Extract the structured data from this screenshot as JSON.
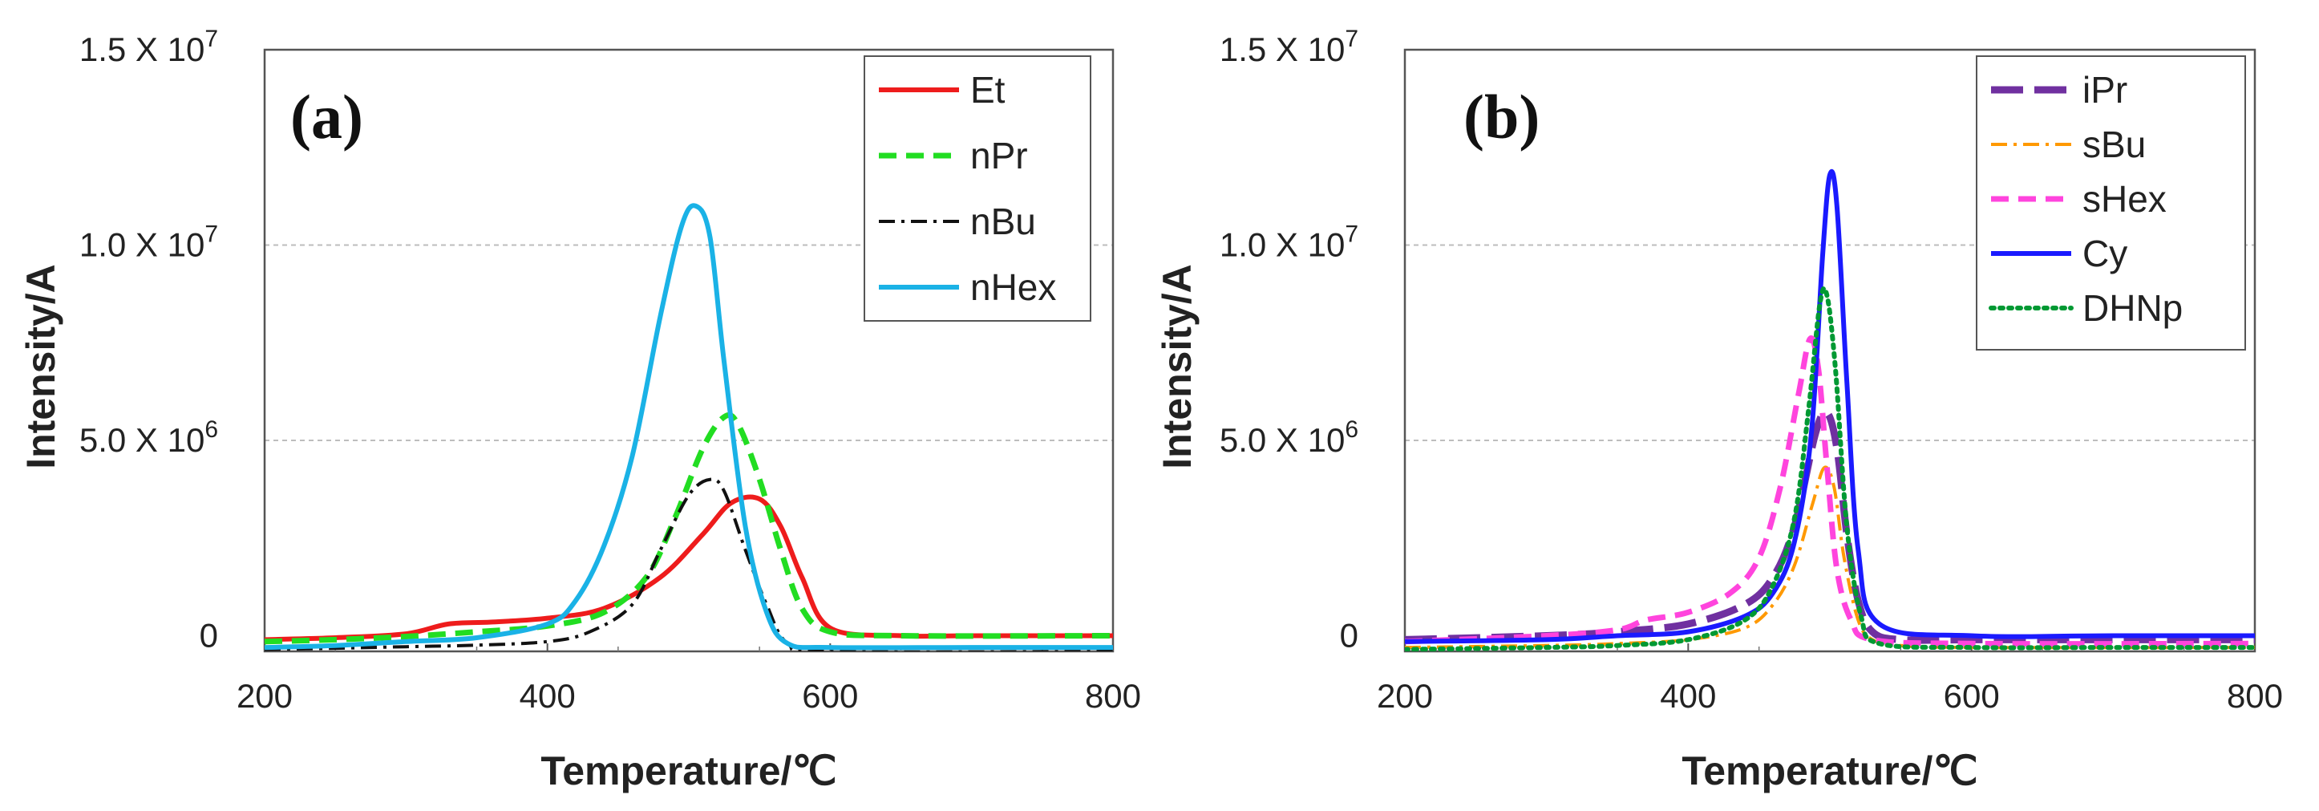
{
  "chart_data": [
    {
      "type": "line",
      "panel_label": "(a)",
      "xlabel": "Temperature/℃",
      "ylabel": "Intensity/A",
      "xlim": [
        200,
        800
      ],
      "ylim": [
        -400000,
        15000000
      ],
      "x_ticks": [
        200,
        400,
        600,
        800
      ],
      "y_ticks": [
        {
          "value": 0,
          "label": "0"
        },
        {
          "value": 5000000,
          "label": "5.0 X 10",
          "exp": "6"
        },
        {
          "value": 10000000,
          "label": "1.0 X 10",
          "exp": "7"
        },
        {
          "value": 15000000,
          "label": "1.5 X 10",
          "exp": "7"
        }
      ],
      "grid": "horizontal",
      "legend_position": "top-right",
      "series": [
        {
          "name": "Et",
          "color": "#ee1c1c",
          "dash": "solid",
          "x": [
            200,
            250,
            300,
            330,
            360,
            400,
            440,
            480,
            510,
            530,
            550,
            565,
            580,
            600,
            650,
            700,
            800
          ],
          "y": [
            -100000,
            -50000,
            50000,
            300000,
            350000,
            450000,
            700000,
            1500000,
            2600000,
            3400000,
            3500000,
            2800000,
            1500000,
            200000,
            0,
            0,
            0
          ]
        },
        {
          "name": "nPr",
          "color": "#22dd22",
          "dash": "dashed",
          "x": [
            200,
            250,
            300,
            350,
            400,
            440,
            470,
            490,
            510,
            525,
            535,
            550,
            565,
            580,
            600,
            650,
            800
          ],
          "y": [
            -150000,
            -100000,
            -20000,
            100000,
            250000,
            600000,
            1500000,
            3000000,
            4800000,
            5600000,
            5400000,
            4000000,
            2200000,
            700000,
            100000,
            0,
            0
          ]
        },
        {
          "name": "nBu",
          "color": "#111111",
          "dash": "dashdot",
          "x": [
            200,
            250,
            300,
            350,
            400,
            430,
            460,
            480,
            500,
            515,
            525,
            540,
            555,
            570,
            600,
            800
          ],
          "y": [
            -350000,
            -320000,
            -280000,
            -240000,
            -150000,
            100000,
            800000,
            2200000,
            3600000,
            4000000,
            3700000,
            2200000,
            800000,
            -200000,
            -400000,
            -400000
          ]
        },
        {
          "name": "nHex",
          "color": "#1ab2e6",
          "dash": "solid",
          "x": [
            200,
            250,
            300,
            350,
            400,
            420,
            440,
            460,
            480,
            495,
            505,
            515,
            525,
            540,
            555,
            570,
            600,
            700,
            800
          ],
          "y": [
            -300000,
            -250000,
            -150000,
            -50000,
            300000,
            900000,
            2300000,
            4600000,
            8200000,
            10500000,
            11000000,
            10200000,
            7000000,
            2800000,
            600000,
            -200000,
            -300000,
            -300000,
            -300000
          ]
        }
      ]
    },
    {
      "type": "line",
      "panel_label": "(b)",
      "xlabel": "Temperature/℃",
      "ylabel": "Intensity/A",
      "xlim": [
        200,
        800
      ],
      "ylim": [
        -400000,
        15000000
      ],
      "x_ticks": [
        200,
        400,
        600,
        800
      ],
      "y_ticks": [
        {
          "value": 0,
          "label": "0"
        },
        {
          "value": 5000000,
          "label": "5.0 X 10",
          "exp": "6"
        },
        {
          "value": 10000000,
          "label": "1.0 X 10",
          "exp": "7"
        },
        {
          "value": 15000000,
          "label": "1.5 X 10",
          "exp": "7"
        }
      ],
      "grid": "horizontal",
      "legend_position": "top-right",
      "series": [
        {
          "name": "iPr",
          "color": "#7030a0",
          "dash": "longdash",
          "x": [
            200,
            300,
            350,
            400,
            440,
            460,
            475,
            490,
            498,
            505,
            512,
            520,
            530,
            550,
            600,
            700,
            800
          ],
          "y": [
            -100000,
            0,
            100000,
            300000,
            800000,
            1500000,
            2800000,
            5200000,
            5700000,
            4800000,
            2600000,
            900000,
            100000,
            -100000,
            -100000,
            -100000,
            -100000
          ]
        },
        {
          "name": "sBu",
          "color": "#ff9900",
          "dash": "dashdot",
          "x": [
            200,
            300,
            350,
            400,
            440,
            460,
            475,
            488,
            496,
            503,
            510,
            520,
            530,
            550,
            600,
            800
          ],
          "y": [
            -300000,
            -250000,
            -200000,
            -100000,
            200000,
            800000,
            1800000,
            3400000,
            4300000,
            3800000,
            2000000,
            400000,
            -100000,
            -250000,
            -300000,
            -300000
          ]
        },
        {
          "name": "sHex",
          "color": "#ff44dd",
          "dash": "dashed",
          "x": [
            200,
            300,
            350,
            370,
            400,
            430,
            450,
            465,
            478,
            486,
            492,
            498,
            505,
            515,
            530,
            600,
            800
          ],
          "y": [
            -150000,
            0,
            150000,
            400000,
            600000,
            1100000,
            2000000,
            3800000,
            6200000,
            7600000,
            6800000,
            4300000,
            1700000,
            400000,
            -100000,
            -200000,
            -200000
          ]
        },
        {
          "name": "Cy",
          "color": "#1a1aff",
          "dash": "solid",
          "x": [
            200,
            300,
            350,
            400,
            440,
            460,
            475,
            487,
            495,
            500,
            505,
            512,
            520,
            535,
            600,
            700,
            800
          ],
          "y": [
            -150000,
            -100000,
            0,
            100000,
            500000,
            1100000,
            2400000,
            5200000,
            9800000,
            11800000,
            11000000,
            6500000,
            2200000,
            300000,
            0,
            0,
            0
          ]
        },
        {
          "name": "DHNp",
          "color": "#009933",
          "dash": "dotted",
          "x": [
            200,
            300,
            350,
            400,
            440,
            460,
            475,
            485,
            493,
            498,
            504,
            512,
            522,
            535,
            600,
            700,
            800
          ],
          "y": [
            -350000,
            -300000,
            -250000,
            -100000,
            400000,
            1300000,
            3000000,
            5800000,
            8500000,
            8700000,
            6800000,
            2800000,
            500000,
            -200000,
            -300000,
            -300000,
            -300000
          ]
        }
      ]
    }
  ]
}
